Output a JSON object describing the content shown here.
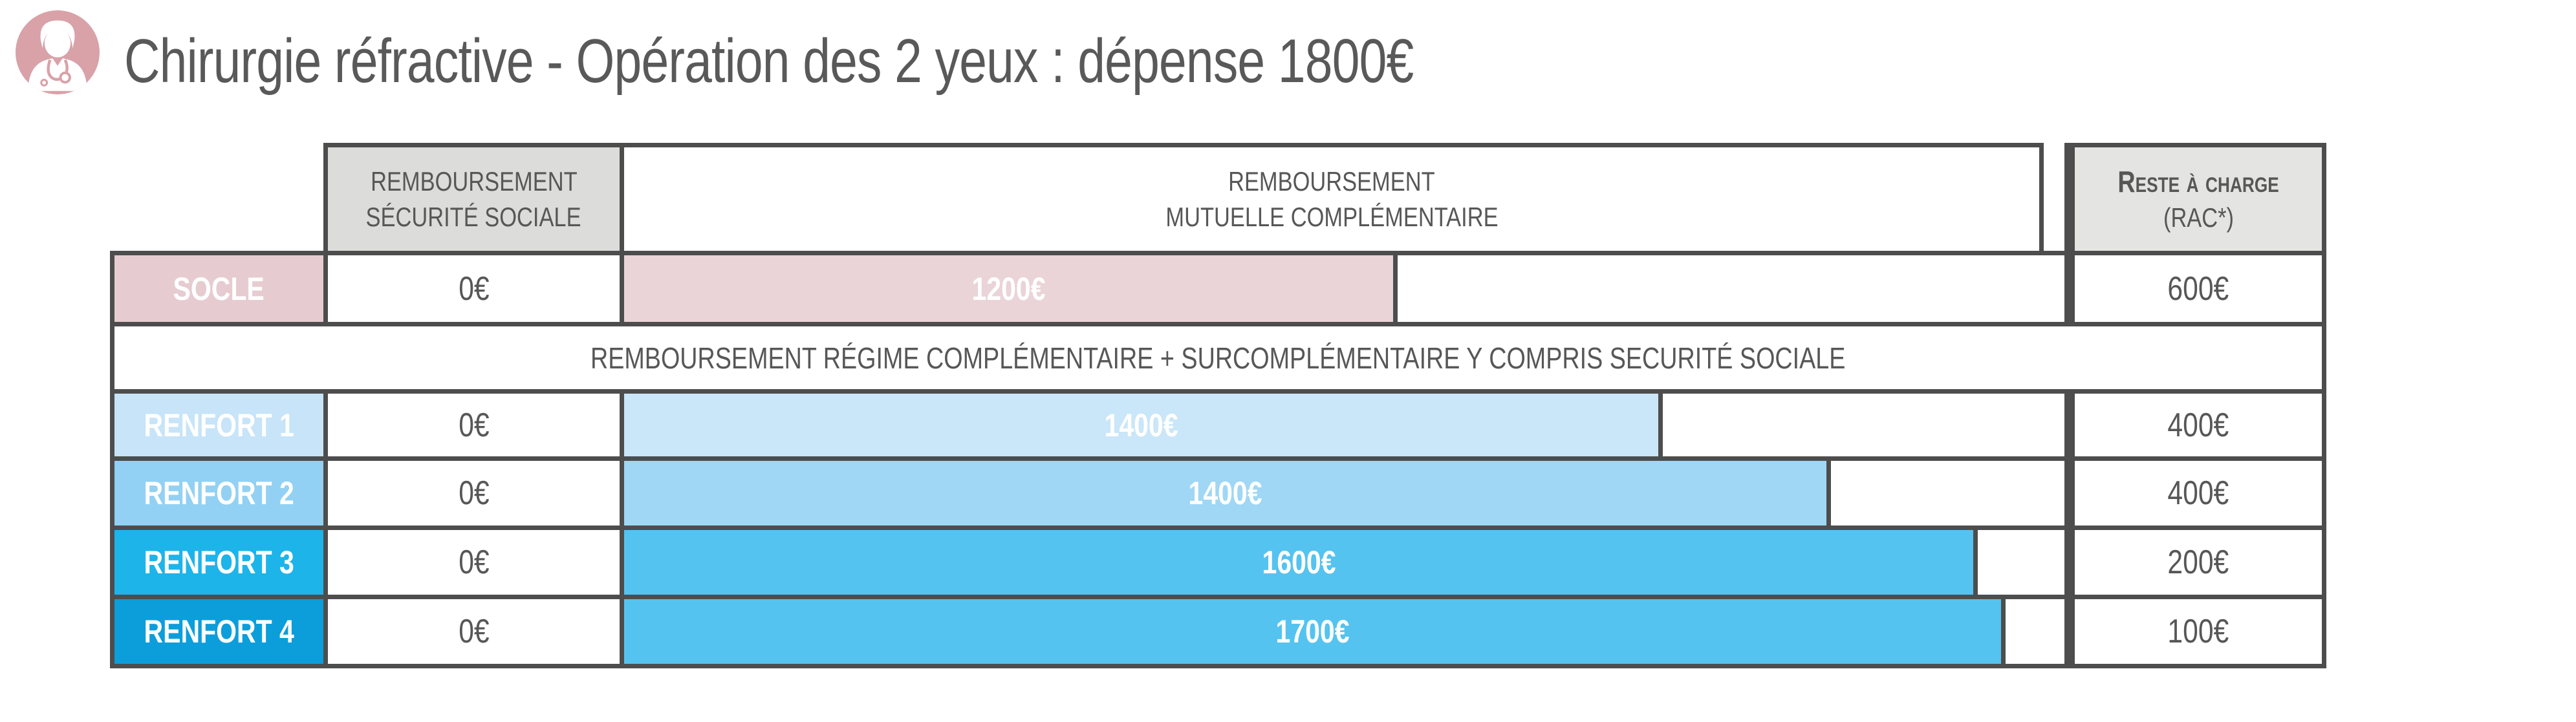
{
  "header": {
    "icon": "doctor-icon",
    "icon_bg": "#d8a2a8",
    "title": "Chirurgie réfractive - Opération des 2 yeux : dépense 1800€",
    "title_color": "#595959"
  },
  "table": {
    "border_color": "#4d4d4d",
    "headers": {
      "securite_sociale": {
        "line1": "REMBOURSEMENT",
        "line2": "SÉCURITÉ SOCIALE",
        "bg": "#dcdcda"
      },
      "mutuelle": {
        "line1": "REMBOURSEMENT",
        "line2": "MUTUELLE COMPLÉMENTAIRE",
        "bg": "#ffffff"
      },
      "rac": {
        "line1": "Reste à charge",
        "line2": "(RAC*)",
        "bg": "#e4e4e2"
      }
    },
    "note_row": "REMBOURSEMENT RÉGIME COMPLÉMENTAIRE + SURCOMPLÉMENTAIRE Y COMPRIS SECURITÉ SOCIALE",
    "rows": [
      {
        "label": "SOCLE",
        "ss_value": "0€",
        "bar_label": "1200€",
        "rac_value": "600€",
        "label_color": "#e6ccd0",
        "bar_color": "#ead4d7",
        "bar_pct": 53.7
      },
      {
        "label": "RENFORT 1",
        "ss_value": "0€",
        "bar_label": "1400€",
        "rac_value": "400€",
        "label_color": "#c7e4f8",
        "bar_color": "#cae6f9",
        "bar_pct": 72.1
      },
      {
        "label": "RENFORT 2",
        "ss_value": "0€",
        "bar_label": "1400€",
        "rac_value": "400€",
        "label_color": "#92d1f3",
        "bar_color": "#9fd7f5",
        "bar_pct": 83.8
      },
      {
        "label": "RENFORT 3",
        "ss_value": "0€",
        "bar_label": "1600€",
        "rac_value": "200€",
        "label_color": "#1db4ea",
        "bar_color": "#55c3ef",
        "bar_pct": 94.0
      },
      {
        "label": "RENFORT 4",
        "ss_value": "0€",
        "bar_label": "1700€",
        "rac_value": "100€",
        "label_color": "#0b9edb",
        "bar_color": "#55c3ef",
        "bar_pct": 95.9
      }
    ]
  },
  "chart_data": {
    "type": "bar",
    "title": "Chirurgie réfractive - Opération des 2 yeux : dépense 1800€",
    "expense_total_eur": 1800,
    "categories": [
      "SOCLE",
      "RENFORT 1",
      "RENFORT 2",
      "RENFORT 3",
      "RENFORT 4"
    ],
    "series": [
      {
        "name": "Remboursement Sécurité Sociale",
        "values": [
          0,
          0,
          0,
          0,
          0
        ]
      },
      {
        "name": "Remboursement Mutuelle Complémentaire",
        "values": [
          1200,
          1400,
          1400,
          1600,
          1700
        ]
      },
      {
        "name": "Reste à charge (RAC*)",
        "values": [
          600,
          400,
          400,
          200,
          100
        ]
      }
    ],
    "annotation": "REMBOURSEMENT RÉGIME COMPLÉMENTAIRE + SURCOMPLÉMENTAIRE Y COMPRIS SECURITÉ SOCIALE",
    "legend_position": "none",
    "grid": false,
    "orientation": "horizontal"
  }
}
